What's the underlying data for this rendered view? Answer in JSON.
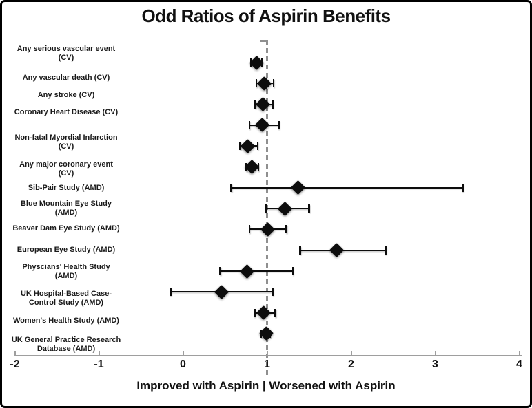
{
  "chart_data": {
    "type": "forest",
    "title": "Odd Ratios of Aspirin Benefits",
    "xlabel": "Improved with Aspirin | Worsened with Aspirin",
    "xlim": [
      -2,
      4
    ],
    "x_ticks": [
      -2,
      -1,
      0,
      1,
      2,
      3,
      4
    ],
    "reference_line_x": 1,
    "grid": false,
    "legend": "none",
    "marker": "black-diamond",
    "studies": [
      {
        "label_lines": [
          "Any serious vascular event",
          "(CV)"
        ],
        "or": 0.88,
        "ci_low": 0.81,
        "ci_high": 0.94
      },
      {
        "label_lines": [
          "Any vascular death (CV)"
        ],
        "or": 0.97,
        "ci_low": 0.87,
        "ci_high": 1.08
      },
      {
        "label_lines": [
          "Any stroke (CV)"
        ],
        "or": 0.95,
        "ci_low": 0.86,
        "ci_high": 1.07
      },
      {
        "label_lines": [
          "Coronary Heart Disease (CV)"
        ],
        "or": 0.94,
        "ci_low": 0.79,
        "ci_high": 1.14
      },
      {
        "label_lines": [
          "Non-fatal Myordial Infarction",
          "(CV)"
        ],
        "or": 0.77,
        "ci_low": 0.68,
        "ci_high": 0.89
      },
      {
        "label_lines": [
          "Any major coronary event",
          "(CV)"
        ],
        "or": 0.82,
        "ci_low": 0.75,
        "ci_high": 0.9
      },
      {
        "label_lines": [
          "Sib-Pair Study (AMD)"
        ],
        "or": 1.37,
        "ci_low": 0.57,
        "ci_high": 3.33
      },
      {
        "label_lines": [
          "Blue Mountain Eye Study",
          "(AMD)"
        ],
        "or": 1.21,
        "ci_low": 0.98,
        "ci_high": 1.5
      },
      {
        "label_lines": [
          "Beaver Dam Eye Study (AMD)"
        ],
        "or": 1.01,
        "ci_low": 0.79,
        "ci_high": 1.23
      },
      {
        "label_lines": [
          "European Eye Study (AMD)"
        ],
        "or": 1.83,
        "ci_low": 1.39,
        "ci_high": 2.41
      },
      {
        "label_lines": [
          "Physcians' Health Study",
          "(AMD)"
        ],
        "or": 0.76,
        "ci_low": 0.44,
        "ci_high": 1.31
      },
      {
        "label_lines": [
          "UK Hospital-Based Case-",
          "Control Study (AMD)"
        ],
        "or": 0.46,
        "ci_low": -0.15,
        "ci_high": 1.07
      },
      {
        "label_lines": [
          "Women's Health Study (AMD)"
        ],
        "or": 0.96,
        "ci_low": 0.85,
        "ci_high": 1.1
      },
      {
        "label_lines": [
          "UK General Practice Research",
          "Database (AMD)"
        ],
        "or": 0.99,
        "ci_low": 0.93,
        "ci_high": 1.04
      }
    ]
  },
  "colors": {
    "marker": "#0d0d0d",
    "ci_line": "#0d0d0d",
    "axis": "#9e9e9e",
    "reference_line": "#8f8f8f",
    "text": "#111111",
    "background": "#ffffff",
    "border": "#000000"
  }
}
